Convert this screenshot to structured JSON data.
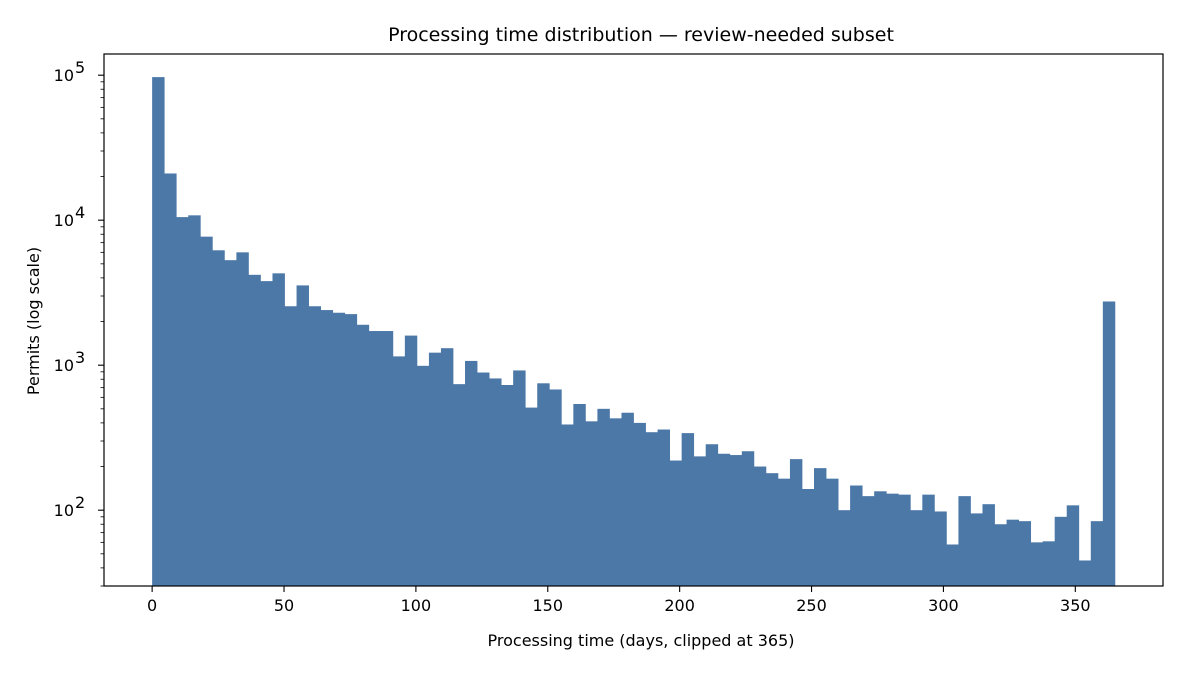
{
  "chart_data": {
    "type": "bar",
    "subtype": "histogram",
    "title": "Processing time distribution — review-needed subset",
    "xlabel": "Processing time (days, clipped at 365)",
    "ylabel": "Permits (log scale)",
    "bar_color": "#4c78a8",
    "y_scale": "log",
    "xlim": [
      -18.25,
      383.25
    ],
    "ylim": [
      30,
      140000
    ],
    "grid": false,
    "legend": "none",
    "x_ticks": [
      {
        "value": 0,
        "label": "0"
      },
      {
        "value": 50,
        "label": "50"
      },
      {
        "value": 100,
        "label": "100"
      },
      {
        "value": 150,
        "label": "150"
      },
      {
        "value": 200,
        "label": "200"
      },
      {
        "value": 250,
        "label": "250"
      },
      {
        "value": 300,
        "label": "300"
      },
      {
        "value": 350,
        "label": "350"
      }
    ],
    "y_ticks": [
      {
        "value": 100,
        "base": "10",
        "exp": "2"
      },
      {
        "value": 1000,
        "base": "10",
        "exp": "3"
      },
      {
        "value": 10000,
        "base": "10",
        "exp": "4"
      },
      {
        "value": 100000,
        "base": "10",
        "exp": "5"
      }
    ],
    "bin_start": 0,
    "bin_end": 365,
    "bin_width": 4.5625,
    "values": [
      97000,
      21000,
      10500,
      10800,
      7700,
      6200,
      5300,
      6000,
      4200,
      3800,
      4300,
      2550,
      3550,
      2550,
      2400,
      2300,
      2250,
      1900,
      1720,
      1720,
      1150,
      1600,
      990,
      1220,
      1310,
      740,
      1070,
      890,
      810,
      730,
      920,
      510,
      750,
      680,
      390,
      540,
      410,
      500,
      430,
      470,
      400,
      345,
      360,
      220,
      340,
      235,
      285,
      245,
      240,
      255,
      200,
      180,
      165,
      225,
      140,
      195,
      165,
      100,
      148,
      125,
      135,
      130,
      128,
      100,
      128,
      98,
      58,
      125,
      95,
      110,
      80,
      86,
      84,
      60,
      61,
      90,
      108,
      45,
      84,
      2750
    ]
  }
}
